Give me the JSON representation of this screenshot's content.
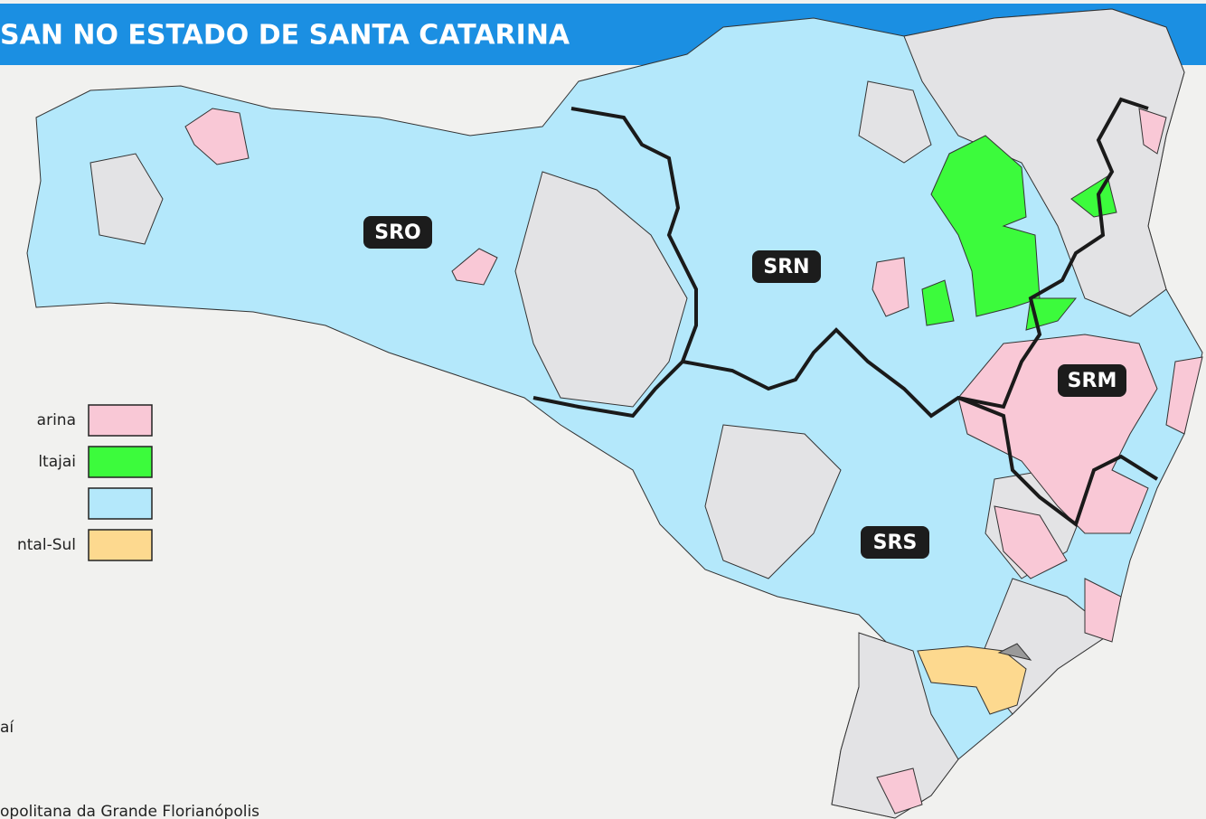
{
  "header": {
    "title": "SAN NO ESTADO DE SANTA CATARINA"
  },
  "regions": [
    {
      "label": "SRO"
    },
    {
      "label": "SRN"
    },
    {
      "label": "SRM"
    },
    {
      "label": "SRS"
    }
  ],
  "legend": [
    {
      "label": "arina",
      "color": "#f9c8d6"
    },
    {
      "label": "ltajai",
      "color": "#3cfb3c"
    },
    {
      "color": "#b4e8fb"
    },
    {
      "label": "ntal-Sul",
      "color": "#fdd98f"
    }
  ],
  "notes": [
    "aí",
    "opolitana da Grande Florianópolis"
  ]
}
